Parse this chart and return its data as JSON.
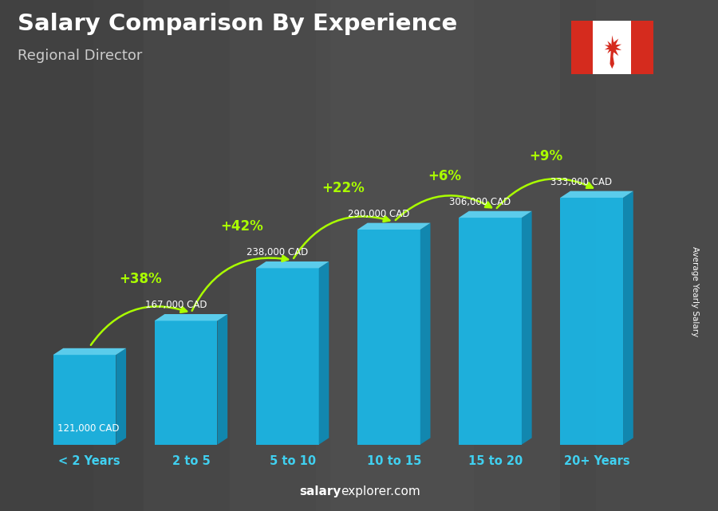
{
  "title": "Salary Comparison By Experience",
  "subtitle": "Regional Director",
  "categories": [
    "< 2 Years",
    "2 to 5",
    "5 to 10",
    "10 to 15",
    "15 to 20",
    "20+ Years"
  ],
  "values": [
    121000,
    167000,
    238000,
    290000,
    306000,
    333000
  ],
  "labels": [
    "121,000 CAD",
    "167,000 CAD",
    "238,000 CAD",
    "290,000 CAD",
    "306,000 CAD",
    "333,000 CAD"
  ],
  "pct_changes": [
    null,
    "+38%",
    "+42%",
    "+22%",
    "+6%",
    "+9%"
  ],
  "bar_color_front": "#1ab8e8",
  "bar_color_top": "#5dd4f5",
  "bar_color_side": "#0d8db8",
  "bg_color": "#5a5a5a",
  "title_color": "#ffffff",
  "subtitle_color": "#cccccc",
  "label_color": "#ffffff",
  "xtick_color": "#40d0f0",
  "pct_color": "#aaff00",
  "watermark_bold": "salary",
  "watermark_normal": "explorer.com",
  "ylabel_text": "Average Yearly Salary",
  "ylabel_color": "#ffffff",
  "flag_red": "#d52b1e",
  "flag_white": "#ffffff"
}
